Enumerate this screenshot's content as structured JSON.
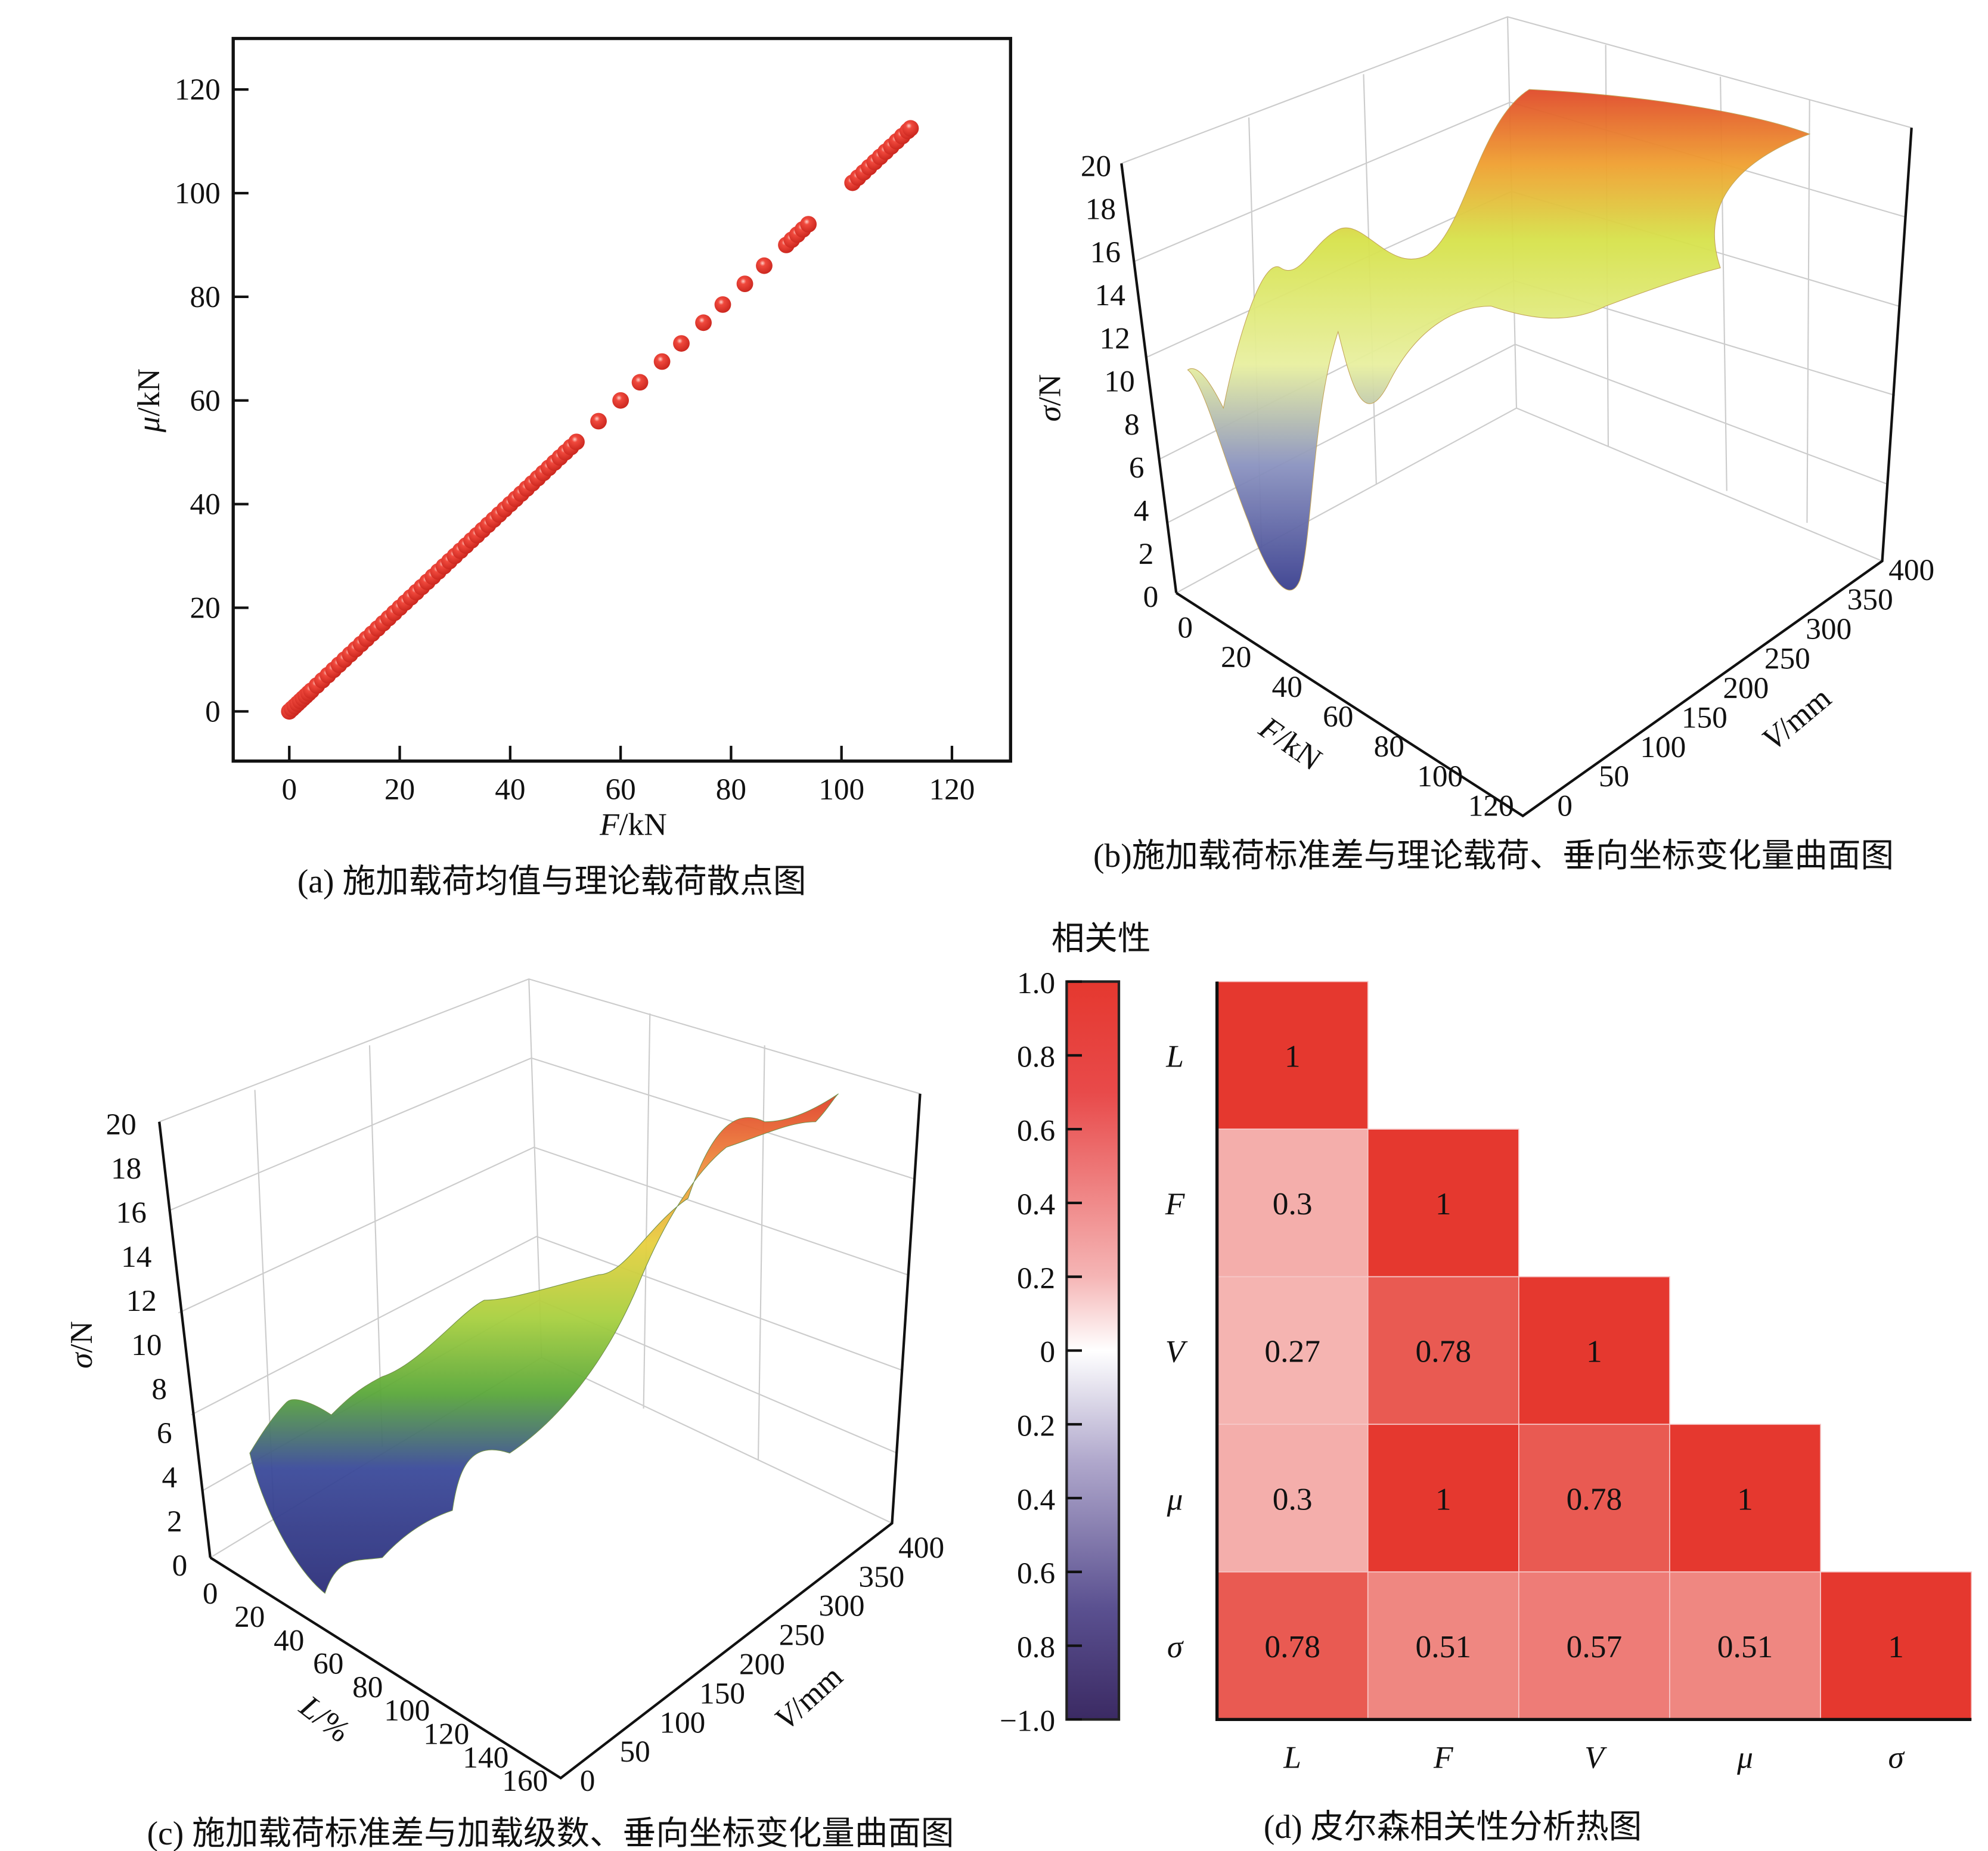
{
  "chart_data": [
    {
      "id": "a",
      "type": "scatter",
      "caption": "(a) 施加载荷均值与理论载荷散点图",
      "xlabel_var": "F",
      "xlabel_unit": "/kN",
      "ylabel_var": "μ",
      "ylabel_unit": "/kN",
      "xlim": [
        -10,
        130
      ],
      "ylim": [
        -10,
        130
      ],
      "xticks": [
        0,
        20,
        40,
        60,
        80,
        100,
        120
      ],
      "yticks": [
        0,
        20,
        40,
        60,
        80,
        100,
        120
      ],
      "marker_color": "#e53a2f",
      "x": [
        0,
        0.5,
        1,
        1.5,
        2,
        2.5,
        3,
        3.5,
        4,
        5,
        6,
        7,
        8,
        9,
        10,
        11,
        12,
        13,
        14,
        15,
        16,
        17,
        18,
        19,
        20,
        21,
        22,
        23,
        24,
        25,
        26,
        27,
        28,
        29,
        30,
        31,
        32,
        33,
        34,
        35,
        36,
        37,
        38,
        39,
        40,
        41,
        42,
        43,
        44,
        45,
        46,
        47,
        48,
        49,
        50,
        51,
        52,
        56,
        60,
        63.5,
        67.5,
        71,
        75,
        78.5,
        82.5,
        86,
        90,
        91,
        92,
        93,
        94,
        102,
        103,
        104,
        105,
        106,
        107,
        108,
        109,
        110,
        111,
        112,
        112.5
      ],
      "y": [
        0,
        0.5,
        1,
        1.5,
        2,
        2.5,
        3,
        3.5,
        4,
        5,
        6,
        7,
        8,
        9,
        10,
        11,
        12,
        13,
        14,
        15,
        16,
        17,
        18,
        19,
        20,
        21,
        22,
        23,
        24,
        25,
        26,
        27,
        28,
        29,
        30,
        31,
        32,
        33,
        34,
        35,
        36,
        37,
        38,
        39,
        40,
        41,
        42,
        43,
        44,
        45,
        46,
        47,
        48,
        49,
        50,
        51,
        52,
        56,
        60,
        63.5,
        67.5,
        71,
        75,
        78.5,
        82.5,
        86,
        90,
        91,
        92,
        93,
        94,
        102,
        103,
        104,
        105,
        106,
        107,
        108,
        109,
        110,
        111,
        112,
        112.5
      ]
    },
    {
      "id": "b",
      "type": "surface3d",
      "caption": "(b)施加载荷标准差与理论载荷、垂向坐标变化量曲面图",
      "xlabel_var": "F",
      "xlabel_unit": "/kN",
      "ylabel_var": "V",
      "ylabel_unit": "/mm",
      "zlabel_var": "σ",
      "zlabel_unit": "/N",
      "xticks": [
        0,
        20,
        40,
        60,
        80,
        100,
        120
      ],
      "yticks": [
        0,
        50,
        100,
        150,
        200,
        250,
        300,
        350,
        400
      ],
      "zticks": [
        0,
        2,
        4,
        6,
        8,
        10,
        12,
        14,
        16,
        18,
        20
      ],
      "zlim": [
        0,
        20
      ]
    },
    {
      "id": "c",
      "type": "surface3d",
      "caption": "(c) 施加载荷标准差与加载级数、垂向坐标变化量曲面图",
      "xlabel_var": "L",
      "xlabel_unit": "/%",
      "ylabel_var": "V",
      "ylabel_unit": "/mm",
      "zlabel_var": "σ",
      "zlabel_unit": "/N",
      "xticks": [
        0,
        20,
        40,
        60,
        80,
        100,
        120,
        140,
        160
      ],
      "yticks": [
        0,
        50,
        100,
        150,
        200,
        250,
        300,
        350,
        400
      ],
      "zticks": [
        0,
        2,
        4,
        6,
        8,
        10,
        12,
        14,
        16,
        18,
        20
      ],
      "zlim": [
        0,
        20
      ]
    },
    {
      "id": "d",
      "type": "heatmap",
      "caption": "(d) 皮尔森相关性分析热图",
      "colorbar_title": "相关性",
      "colorbar_ticks": [
        "1.0",
        "0.8",
        "0.6",
        "0.4",
        "0.2",
        "0",
        "0.2",
        "0.4",
        "0.6",
        "0.8",
        "−1.0"
      ],
      "colorbar_range": [
        -1,
        1
      ],
      "labels": [
        "L",
        "F",
        "V",
        "μ",
        "σ"
      ],
      "matrix": [
        [
          1,
          null,
          null,
          null,
          null
        ],
        [
          0.3,
          1,
          null,
          null,
          null
        ],
        [
          0.27,
          0.78,
          1,
          null,
          null
        ],
        [
          0.3,
          1,
          0.78,
          1,
          null
        ],
        [
          0.78,
          0.51,
          0.57,
          0.51,
          1
        ]
      ],
      "cell_text": [
        [
          "1",
          "",
          "",
          "",
          ""
        ],
        [
          "0.3",
          "1",
          "",
          "",
          ""
        ],
        [
          "0.27",
          "0.78",
          "1",
          "",
          ""
        ],
        [
          "0.3",
          "1",
          "0.78",
          "1",
          ""
        ],
        [
          "0.78",
          "0.51",
          "0.57",
          "0.51",
          "1"
        ]
      ],
      "colors": {
        "high": "#e5382f",
        "mid": "#ffffff",
        "low": "#3b2a63"
      }
    }
  ]
}
